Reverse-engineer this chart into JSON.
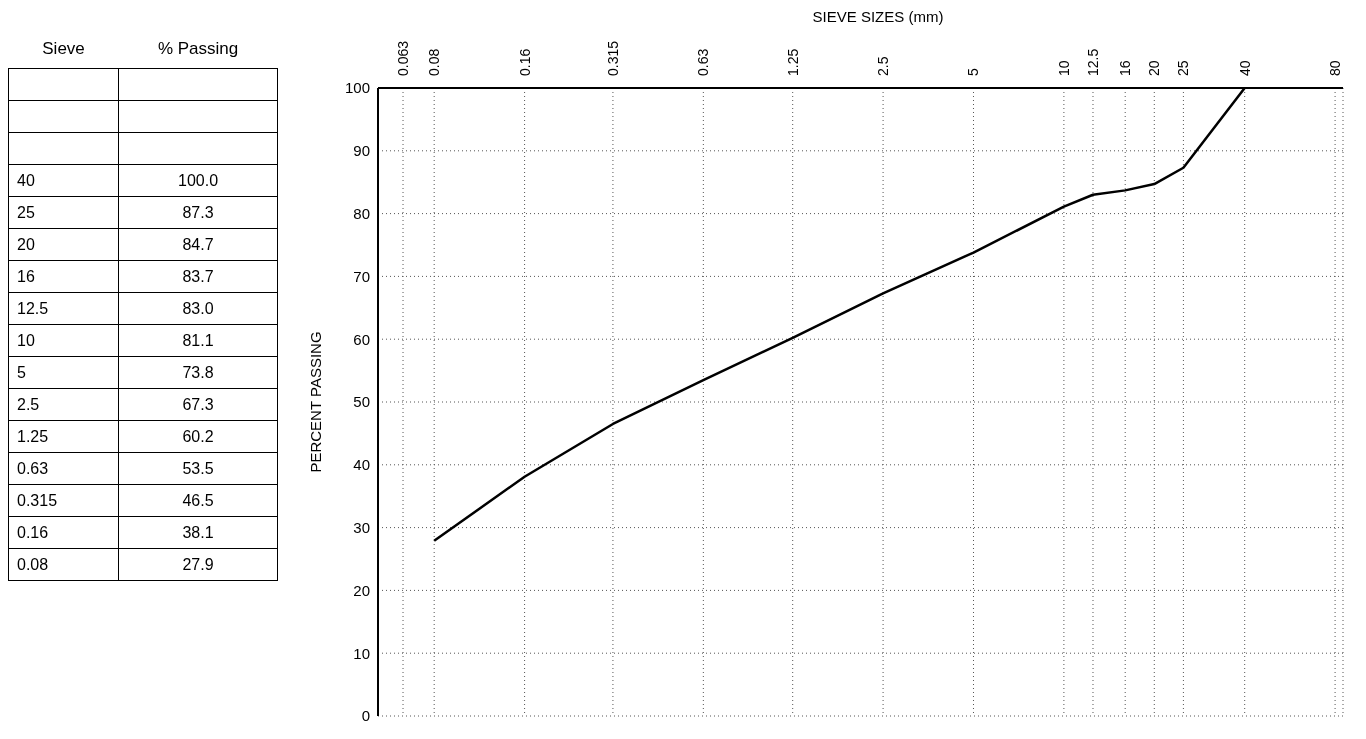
{
  "chart_data": {
    "type": "line",
    "xlabel": "SIEVE SIZES (mm)",
    "ylabel": "PERCENT PASSING",
    "log": "x",
    "xlim": [
      0.052,
      85
    ],
    "ylim": [
      0,
      100
    ],
    "xticks": [
      0.063,
      0.08,
      0.16,
      0.315,
      0.63,
      1.25,
      2.5,
      5,
      10,
      12.5,
      16,
      20,
      25,
      40,
      80
    ],
    "yticks": [
      0,
      10,
      20,
      30,
      40,
      50,
      60,
      70,
      80,
      90,
      100
    ],
    "grid": true,
    "marker": "none",
    "line_style": "solid",
    "series": [
      {
        "color": "#000000",
        "x": [
          40,
          25,
          20,
          16,
          12.5,
          10,
          5,
          2.5,
          1.25,
          0.63,
          0.315,
          0.16,
          0.08
        ],
        "values": [
          100,
          87.3,
          84.7,
          83.7,
          83,
          81.1,
          73.8,
          67.3,
          60.2,
          53.5,
          46.5,
          38.1,
          27.9
        ]
      }
    ],
    "annotations": [
      "Sieve",
      "% Passing",
      "40",
      "100.0",
      "25",
      "87.3",
      "20",
      "84.7",
      "16",
      "83.7",
      "12.5",
      "83.0",
      "10",
      "81.1",
      "5",
      "73.8",
      "2.5",
      "67.3",
      "1.25",
      "60.2",
      "0.63",
      "53.5",
      "0.315",
      "46.5",
      "0.16",
      "38.1",
      "0.08",
      "27.9"
    ]
  }
}
